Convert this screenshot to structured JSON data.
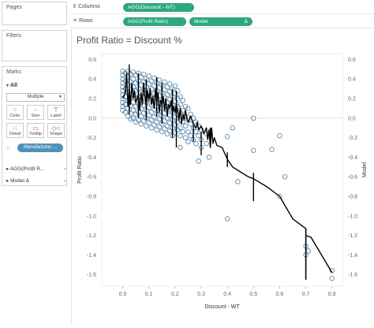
{
  "cards": {
    "pages_title": "Pages",
    "filters_title": "Filters",
    "marks_title": "Marks",
    "marks_all": "All",
    "mark_type": "Multiple",
    "buttons": [
      {
        "label": "Color",
        "icon": "color-icon"
      },
      {
        "label": "Size",
        "icon": "size-icon"
      },
      {
        "label": "Label",
        "icon": "label-icon"
      },
      {
        "label": "Detail",
        "icon": "detail-icon"
      },
      {
        "label": "Tooltip",
        "icon": "tooltip-icon"
      },
      {
        "label": "Shape",
        "icon": "shape-icon"
      }
    ],
    "detail_pill": "Manufacturer ...",
    "agg_row1": "AGG(Profit R...",
    "agg_row2": "Model",
    "delta": "Δ"
  },
  "shelves": {
    "columns_label": "Columns",
    "columns_pill": "AGG(Discount - WT)",
    "rows_label": "Rows",
    "rows_pill1": "AGG(Profit Ratio)",
    "rows_pill2": "Model",
    "delta": "Δ"
  },
  "colors": {
    "pill_green": "#2ca87a",
    "pill_blue": "#4f91b9",
    "circle": "#4a7fa8",
    "line": "#000000"
  },
  "chart_data": {
    "type": "scatter",
    "title": "Profit Ratio = Discount %",
    "xlabel": "Discount - WT",
    "ylabel": "Profit Ratio",
    "y2label": "Model",
    "xlim": [
      -0.08,
      0.84
    ],
    "ylim": [
      -1.72,
      0.66
    ],
    "xticks": [
      "0.0",
      "0.1",
      "0.2",
      "0.3",
      "0.4",
      "0.5",
      "0.6",
      "0.7",
      "0.8"
    ],
    "xtick_values": [
      0,
      0.1,
      0.2,
      0.3,
      0.4,
      0.5,
      0.6,
      0.7,
      0.8
    ],
    "yticks": [
      "0.6",
      "0.4",
      "0.2",
      "0.0",
      "-0.2",
      "-0.4",
      "-0.6",
      "-0.8",
      "-1.0",
      "-1.2",
      "-1.4",
      "-1.6"
    ],
    "ytick_values": [
      0.6,
      0.4,
      0.2,
      0,
      -0.2,
      -0.4,
      -0.6,
      -0.8,
      -1.0,
      -1.2,
      -1.4,
      -1.6
    ],
    "points": [
      [
        0.0,
        0.48
      ],
      [
        0.0,
        0.44
      ],
      [
        0.0,
        0.4
      ],
      [
        0.0,
        0.36
      ],
      [
        0.0,
        0.32
      ],
      [
        0.0,
        0.28
      ],
      [
        0.0,
        0.24
      ],
      [
        0.0,
        0.2
      ],
      [
        0.0,
        0.16
      ],
      [
        0.0,
        0.12
      ],
      [
        0.0,
        0.08
      ],
      [
        0.01,
        0.46
      ],
      [
        0.01,
        0.38
      ],
      [
        0.01,
        0.3
      ],
      [
        0.01,
        0.22
      ],
      [
        0.01,
        0.14
      ],
      [
        0.01,
        0.06
      ],
      [
        0.02,
        0.48
      ],
      [
        0.02,
        0.42
      ],
      [
        0.02,
        0.34
      ],
      [
        0.02,
        0.26
      ],
      [
        0.02,
        0.18
      ],
      [
        0.02,
        0.1
      ],
      [
        0.02,
        0.02
      ],
      [
        0.03,
        0.45
      ],
      [
        0.03,
        0.37
      ],
      [
        0.03,
        0.29
      ],
      [
        0.03,
        0.21
      ],
      [
        0.03,
        0.13
      ],
      [
        0.03,
        0.05
      ],
      [
        0.03,
        -0.01
      ],
      [
        0.04,
        0.47
      ],
      [
        0.04,
        0.4
      ],
      [
        0.04,
        0.32
      ],
      [
        0.04,
        0.24
      ],
      [
        0.04,
        0.16
      ],
      [
        0.04,
        0.08
      ],
      [
        0.04,
        0.0
      ],
      [
        0.05,
        0.44
      ],
      [
        0.05,
        0.36
      ],
      [
        0.05,
        0.28
      ],
      [
        0.05,
        0.2
      ],
      [
        0.05,
        0.12
      ],
      [
        0.05,
        0.04
      ],
      [
        0.05,
        -0.04
      ],
      [
        0.06,
        0.46
      ],
      [
        0.06,
        0.38
      ],
      [
        0.06,
        0.3
      ],
      [
        0.06,
        0.22
      ],
      [
        0.06,
        0.14
      ],
      [
        0.06,
        0.06
      ],
      [
        0.06,
        -0.02
      ],
      [
        0.07,
        0.42
      ],
      [
        0.07,
        0.34
      ],
      [
        0.07,
        0.26
      ],
      [
        0.07,
        0.18
      ],
      [
        0.07,
        0.1
      ],
      [
        0.07,
        0.02
      ],
      [
        0.07,
        -0.06
      ],
      [
        0.08,
        0.45
      ],
      [
        0.08,
        0.37
      ],
      [
        0.08,
        0.29
      ],
      [
        0.08,
        0.21
      ],
      [
        0.08,
        0.13
      ],
      [
        0.08,
        0.05
      ],
      [
        0.08,
        -0.03
      ],
      [
        0.09,
        0.4
      ],
      [
        0.09,
        0.32
      ],
      [
        0.09,
        0.24
      ],
      [
        0.09,
        0.16
      ],
      [
        0.09,
        0.08
      ],
      [
        0.09,
        0.0
      ],
      [
        0.09,
        -0.08
      ],
      [
        0.1,
        0.43
      ],
      [
        0.1,
        0.35
      ],
      [
        0.1,
        0.27
      ],
      [
        0.1,
        0.19
      ],
      [
        0.1,
        0.11
      ],
      [
        0.1,
        0.03
      ],
      [
        0.1,
        -0.05
      ],
      [
        0.11,
        0.38
      ],
      [
        0.11,
        0.3
      ],
      [
        0.11,
        0.22
      ],
      [
        0.11,
        0.14
      ],
      [
        0.11,
        0.06
      ],
      [
        0.11,
        -0.02
      ],
      [
        0.11,
        -0.1
      ],
      [
        0.12,
        0.41
      ],
      [
        0.12,
        0.33
      ],
      [
        0.12,
        0.25
      ],
      [
        0.12,
        0.17
      ],
      [
        0.12,
        0.09
      ],
      [
        0.12,
        0.01
      ],
      [
        0.12,
        -0.07
      ],
      [
        0.13,
        0.36
      ],
      [
        0.13,
        0.28
      ],
      [
        0.13,
        0.2
      ],
      [
        0.13,
        0.12
      ],
      [
        0.13,
        0.04
      ],
      [
        0.13,
        -0.04
      ],
      [
        0.13,
        -0.12
      ],
      [
        0.14,
        0.39
      ],
      [
        0.14,
        0.31
      ],
      [
        0.14,
        0.23
      ],
      [
        0.14,
        0.15
      ],
      [
        0.14,
        0.07
      ],
      [
        0.14,
        -0.01
      ],
      [
        0.14,
        -0.09
      ],
      [
        0.15,
        0.34
      ],
      [
        0.15,
        0.26
      ],
      [
        0.15,
        0.18
      ],
      [
        0.15,
        0.1
      ],
      [
        0.15,
        0.02
      ],
      [
        0.15,
        -0.06
      ],
      [
        0.15,
        -0.14
      ],
      [
        0.16,
        0.37
      ],
      [
        0.16,
        0.29
      ],
      [
        0.16,
        0.21
      ],
      [
        0.16,
        0.13
      ],
      [
        0.16,
        0.05
      ],
      [
        0.16,
        -0.03
      ],
      [
        0.16,
        -0.11
      ],
      [
        0.17,
        0.32
      ],
      [
        0.17,
        0.24
      ],
      [
        0.17,
        0.16
      ],
      [
        0.17,
        0.08
      ],
      [
        0.17,
        0.0
      ],
      [
        0.17,
        -0.08
      ],
      [
        0.17,
        -0.16
      ],
      [
        0.18,
        0.35
      ],
      [
        0.18,
        0.27
      ],
      [
        0.18,
        0.19
      ],
      [
        0.18,
        0.11
      ],
      [
        0.18,
        0.03
      ],
      [
        0.18,
        -0.05
      ],
      [
        0.18,
        -0.13
      ],
      [
        0.19,
        0.3
      ],
      [
        0.19,
        0.22
      ],
      [
        0.19,
        0.14
      ],
      [
        0.19,
        0.06
      ],
      [
        0.19,
        -0.02
      ],
      [
        0.19,
        -0.1
      ],
      [
        0.19,
        -0.18
      ],
      [
        0.2,
        0.33
      ],
      [
        0.2,
        0.25
      ],
      [
        0.2,
        0.17
      ],
      [
        0.2,
        0.09
      ],
      [
        0.2,
        0.01
      ],
      [
        0.2,
        -0.07
      ],
      [
        0.2,
        -0.15
      ],
      [
        0.21,
        0.28
      ],
      [
        0.21,
        0.2
      ],
      [
        0.21,
        0.12
      ],
      [
        0.21,
        0.04
      ],
      [
        0.21,
        -0.04
      ],
      [
        0.21,
        -0.12
      ],
      [
        0.22,
        0.22
      ],
      [
        0.22,
        0.14
      ],
      [
        0.22,
        0.06
      ],
      [
        0.22,
        -0.02
      ],
      [
        0.22,
        -0.1
      ],
      [
        0.22,
        -0.18
      ],
      [
        0.23,
        0.18
      ],
      [
        0.23,
        0.08
      ],
      [
        0.23,
        -0.04
      ],
      [
        0.23,
        -0.14
      ],
      [
        0.24,
        0.12
      ],
      [
        0.24,
        0.02
      ],
      [
        0.24,
        -0.08
      ],
      [
        0.24,
        -0.2
      ],
      [
        0.25,
        0.1
      ],
      [
        0.25,
        -0.02
      ],
      [
        0.25,
        -0.14
      ],
      [
        0.25,
        -0.24
      ],
      [
        0.26,
        0.04
      ],
      [
        0.26,
        -0.06
      ],
      [
        0.26,
        -0.18
      ],
      [
        0.27,
        0.0
      ],
      [
        0.27,
        -0.1
      ],
      [
        0.27,
        -0.22
      ],
      [
        0.28,
        -0.04
      ],
      [
        0.28,
        -0.14
      ],
      [
        0.28,
        -0.26
      ],
      [
        0.29,
        -0.08
      ],
      [
        0.29,
        -0.18
      ],
      [
        0.3,
        -0.12
      ],
      [
        0.3,
        -0.22
      ],
      [
        0.32,
        -0.16
      ],
      [
        0.32,
        -0.26
      ],
      [
        0.21,
        -0.04
      ],
      [
        0.22,
        -0.3
      ],
      [
        0.3,
        -0.3
      ],
      [
        0.4,
        -1.03
      ],
      [
        0.44,
        -0.65
      ],
      [
        0.29,
        -0.44
      ],
      [
        0.33,
        -0.4
      ],
      [
        0.42,
        -0.1
      ],
      [
        0.4,
        -0.19
      ],
      [
        0.5,
        0.0
      ],
      [
        0.5,
        -0.33
      ],
      [
        0.6,
        -0.18
      ],
      [
        0.57,
        -0.32
      ],
      [
        0.62,
        -0.6
      ],
      [
        0.6,
        -0.8
      ],
      [
        0.7,
        -1.31
      ],
      [
        0.7,
        -1.4
      ],
      [
        0.71,
        -1.36
      ],
      [
        0.8,
        -1.56
      ],
      [
        0.8,
        -1.64
      ]
    ],
    "line": [
      [
        0.0,
        0.2
      ],
      [
        0.01,
        0.26
      ],
      [
        0.015,
        0.46
      ],
      [
        0.02,
        0.12
      ],
      [
        0.025,
        0.3
      ],
      [
        0.03,
        0.14
      ],
      [
        0.035,
        0.36
      ],
      [
        0.04,
        0.2
      ],
      [
        0.045,
        0.28
      ],
      [
        0.05,
        0.16
      ],
      [
        0.06,
        0.24
      ],
      [
        0.065,
        0.08
      ],
      [
        0.07,
        0.26
      ],
      [
        0.075,
        0.14
      ],
      [
        0.08,
        0.36
      ],
      [
        0.085,
        0.22
      ],
      [
        0.09,
        0.12
      ],
      [
        0.095,
        0.28
      ],
      [
        0.1,
        0.18
      ],
      [
        0.105,
        0.3
      ],
      [
        0.11,
        0.14
      ],
      [
        0.115,
        0.22
      ],
      [
        0.12,
        0.1
      ],
      [
        0.125,
        0.3
      ],
      [
        0.13,
        0.16
      ],
      [
        0.135,
        0.26
      ],
      [
        0.14,
        0.06
      ],
      [
        0.145,
        0.18
      ],
      [
        0.15,
        0.14
      ],
      [
        0.155,
        0.22
      ],
      [
        0.16,
        0.08
      ],
      [
        0.165,
        0.2
      ],
      [
        0.17,
        0.02
      ],
      [
        0.175,
        0.14
      ],
      [
        0.18,
        0.1
      ],
      [
        0.185,
        0.18
      ],
      [
        0.19,
        0.04
      ],
      [
        0.195,
        0.12
      ],
      [
        0.2,
        0.06
      ],
      [
        0.205,
        0.14
      ],
      [
        0.21,
        0.08
      ],
      [
        0.215,
        -0.02
      ],
      [
        0.22,
        0.1
      ],
      [
        0.225,
        -0.06
      ],
      [
        0.23,
        0.04
      ],
      [
        0.235,
        -0.02
      ],
      [
        0.24,
        0.08
      ],
      [
        0.245,
        0.0
      ],
      [
        0.25,
        -0.04
      ],
      [
        0.26,
        0.02
      ],
      [
        0.27,
        -0.06
      ],
      [
        0.28,
        -0.1
      ],
      [
        0.285,
        -0.04
      ],
      [
        0.29,
        -0.12
      ],
      [
        0.3,
        -0.08
      ],
      [
        0.31,
        -0.16
      ],
      [
        0.32,
        -0.1
      ],
      [
        0.325,
        -0.22
      ],
      [
        0.33,
        -0.12
      ],
      [
        0.335,
        -0.3
      ],
      [
        0.34,
        -0.1
      ],
      [
        0.345,
        -0.26
      ],
      [
        0.35,
        -0.2
      ],
      [
        0.36,
        -0.28
      ],
      [
        0.38,
        -0.3
      ],
      [
        0.4,
        -0.42
      ],
      [
        0.42,
        -0.5
      ],
      [
        0.45,
        -0.55
      ],
      [
        0.48,
        -0.6
      ],
      [
        0.5,
        -0.62
      ],
      [
        0.55,
        -0.7
      ],
      [
        0.6,
        -0.8
      ],
      [
        0.65,
        -1.03
      ],
      [
        0.7,
        -1.13
      ],
      [
        0.7,
        -1.65
      ],
      [
        0.7,
        -1.2
      ],
      [
        0.72,
        -1.22
      ],
      [
        0.8,
        -1.58
      ]
    ],
    "spikes": [
      [
        0.025,
        0.04,
        0.55
      ],
      [
        0.06,
        0.0,
        0.46
      ],
      [
        0.09,
        -0.02,
        0.4
      ],
      [
        0.13,
        0.02,
        0.42
      ],
      [
        0.15,
        -0.06,
        0.36
      ],
      [
        0.19,
        -0.2,
        0.3
      ],
      [
        0.205,
        -0.3,
        0.28
      ],
      [
        0.27,
        -0.24,
        -0.08
      ],
      [
        0.3,
        -0.38,
        -0.14
      ],
      [
        0.335,
        -0.3,
        -0.1
      ],
      [
        0.4,
        -0.5,
        -0.35
      ],
      [
        0.5,
        -0.85,
        -0.56
      ],
      [
        0.7,
        -1.65,
        -1.13
      ]
    ]
  }
}
